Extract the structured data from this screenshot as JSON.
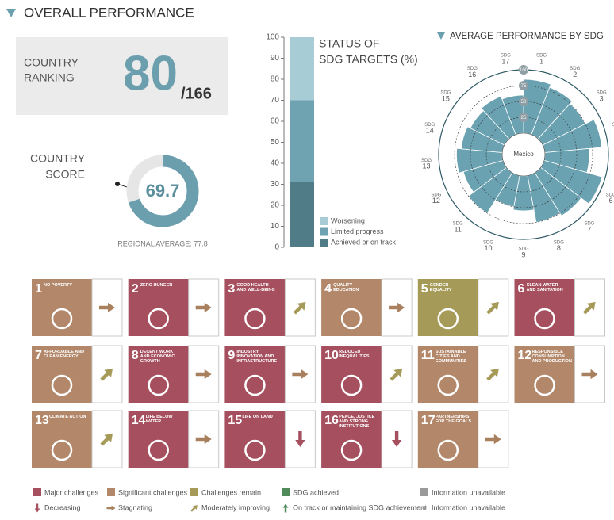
{
  "header": {
    "title": "OVERALL PERFORMANCE"
  },
  "ranking": {
    "label": [
      "COUNTRY",
      "RANKING"
    ],
    "value": 80,
    "total": "/166"
  },
  "chart_data": [
    {
      "type": "donut",
      "label": [
        "COUNTRY",
        "SCORE"
      ],
      "value": 69.7,
      "ylim": [
        0,
        100
      ],
      "color": "#6b9fae",
      "track_color": "#e6e6e6",
      "note": "REGIONAL AVERAGE: 77.8"
    },
    {
      "type": "stacked_bar",
      "title": [
        "STATUS OF",
        "SDG TARGETS (%)"
      ],
      "ylim": [
        0,
        100
      ],
      "yticks": [
        0,
        10,
        20,
        30,
        40,
        50,
        60,
        70,
        80,
        90,
        100
      ],
      "series": [
        {
          "name": "Achieved or on track",
          "color": "#4f7c87",
          "values": [
            31
          ]
        },
        {
          "name": "Limited progress",
          "color": "#6fa3b2",
          "values": [
            39
          ]
        },
        {
          "name": "Worsening",
          "color": "#a8ccd5",
          "values": [
            30
          ]
        }
      ]
    },
    {
      "type": "radial_bar",
      "title": "AVERAGE PERFORMANCE BY SDG",
      "center_label": "Mexico",
      "category_prefix": "SDG",
      "categories": [
        "1",
        "2",
        "3",
        "4",
        "5",
        "6",
        "7",
        "8",
        "9",
        "10",
        "11",
        "12",
        "13",
        "14",
        "15",
        "16",
        "17"
      ],
      "values": [
        85,
        80,
        75,
        90,
        70,
        95,
        80,
        75,
        55,
        50,
        75,
        65,
        72,
        65,
        60,
        65,
        60
      ],
      "ylim": [
        0,
        100
      ],
      "yticks": [
        25,
        50,
        75,
        100
      ],
      "color": "#6aa2b1"
    }
  ],
  "goals": [
    {
      "number": 1,
      "label": "NO POVERTY",
      "status": 1,
      "trend": 1
    },
    {
      "number": 2,
      "label": "ZERO HUNGER",
      "status": 0,
      "trend": 1
    },
    {
      "number": 3,
      "label": "GOOD HEALTH AND WELL-BEING",
      "status": 0,
      "trend": 2
    },
    {
      "number": 4,
      "label": "QUALITY EDUCATION",
      "status": 1,
      "trend": 1
    },
    {
      "number": 5,
      "label": "GENDER EQUALITY",
      "status": 2,
      "trend": 2
    },
    {
      "number": 6,
      "label": "CLEAN WATER AND SANITATION",
      "status": 0,
      "trend": 2
    },
    {
      "number": 7,
      "label": "AFFORDABLE AND CLEAN ENERGY",
      "status": 1,
      "trend": 2
    },
    {
      "number": 8,
      "label": "DECENT WORK AND ECONOMIC GROWTH",
      "status": 0,
      "trend": 1
    },
    {
      "number": 9,
      "label": "INDUSTRY, INNOVATION AND INFRASTRUCTURE",
      "status": 0,
      "trend": 1
    },
    {
      "number": 10,
      "label": "REDUCED INEQUALITIES",
      "status": 0,
      "trend": 2
    },
    {
      "number": 11,
      "label": "SUSTAINABLE CITIES AND COMMUNITIES",
      "status": 1,
      "trend": 2
    },
    {
      "number": 12,
      "label": "RESPONSIBLE CONSUMPTION AND PRODUCTION",
      "status": 1,
      "trend": 1
    },
    {
      "number": 13,
      "label": "CLIMATE ACTION",
      "status": 1,
      "trend": 2
    },
    {
      "number": 14,
      "label": "LIFE BELOW WATER",
      "status": 0,
      "trend": 1
    },
    {
      "number": 15,
      "label": "LIFE ON LAND",
      "status": 0,
      "trend": 0
    },
    {
      "number": 16,
      "label": "PEACE, JUSTICE AND STRONG INSTITUTIONS",
      "status": 0,
      "trend": 0
    },
    {
      "number": 17,
      "label": "PARTNERSHIPS FOR THE GOALS",
      "status": 1,
      "trend": 1
    }
  ],
  "legend": {
    "statuses": [
      {
        "name": "Major challenges",
        "color": "#a6505f"
      },
      {
        "name": "Significant challenges",
        "color": "#b3886a"
      },
      {
        "name": "Challenges remain",
        "color": "#a69a58"
      },
      {
        "name": "SDG achieved",
        "color": "#4f8b5b"
      },
      {
        "name": "Information unavailable",
        "color": "#9a9a9a"
      }
    ],
    "trends": [
      {
        "name": "Decreasing",
        "color": "#a6505f"
      },
      {
        "name": "Stagnating",
        "color": "#a9805e"
      },
      {
        "name": "Moderately improving",
        "color": "#a69a58"
      },
      {
        "name": "On track or maintaining SDG achievement",
        "color": "#4f8b5b"
      },
      {
        "name": "Information unavailable",
        "color": "#9a9a9a"
      }
    ]
  }
}
